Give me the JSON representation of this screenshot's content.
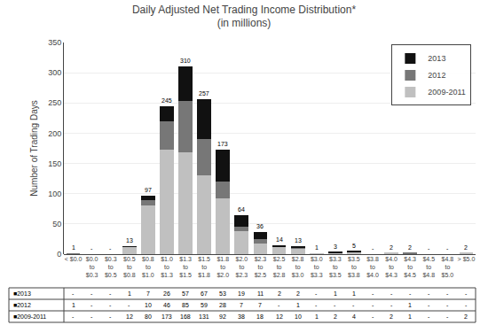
{
  "chart_data": {
    "type": "bar",
    "title": "Daily Adjusted Net Trading Income Distribution*\n(in millions)",
    "ylabel": "Number of Trading Days",
    "categories": [
      "< $0.0",
      "$0.0\nto\n$0.3",
      "$0.3\nto\n$0.5",
      "$0.5\nto\n$0.8",
      "$0.8\nto\n$1.0",
      "$1.0\nto\n$1.3",
      "$1.3\nto\n$1.5",
      "$1.5\nto\n$1.8",
      "$1.8\nto\n$2.0",
      "$2.0\nto\n$2.3",
      "$2.3\nto\n$2.5",
      "$2.5\nto\n$2.8",
      "$2.8\nto\n$3.0",
      "$3.0\nto\n$3.3",
      "$3.3\nto\n$3.5",
      "$3.5\nto\n$3.8",
      "$3.8\nto\n$4.0",
      "$4.0\nto\n$4.3",
      "$4.3\nto\n$4.5",
      "$4.5\nto\n$4.8",
      "$4.8\nto\n$5.0",
      "> $5.0"
    ],
    "series": [
      {
        "name": "2009-2011",
        "color": "#c0c0c0",
        "table_label": "■2009-2011",
        "values": [
          0,
          0,
          0,
          12,
          80,
          173,
          168,
          131,
          92,
          38,
          18,
          12,
          10,
          1,
          2,
          4,
          0,
          2,
          1,
          0,
          0,
          2
        ],
        "value_labels": [
          "-",
          "-",
          "-",
          "12",
          "80",
          "173",
          "168",
          "131",
          "92",
          "38",
          "18",
          "12",
          "10",
          "1",
          "2",
          "4",
          "-",
          "2",
          "1",
          "-",
          "-",
          "2"
        ]
      },
      {
        "name": "2012",
        "color": "#777777",
        "table_label": "■2012",
        "values": [
          1,
          0,
          0,
          0,
          10,
          46,
          85,
          59,
          28,
          7,
          7,
          0,
          1,
          0,
          0,
          0,
          0,
          0,
          1,
          0,
          0,
          0
        ],
        "value_labels": [
          "1",
          "-",
          "-",
          "-",
          "10",
          "46",
          "85",
          "59",
          "28",
          "7",
          "7",
          "-",
          "1",
          "-",
          "-",
          "-",
          "-",
          "-",
          "1",
          "-",
          "-",
          "-"
        ]
      },
      {
        "name": "2013",
        "color": "#111111",
        "table_label": "■2013",
        "values": [
          0,
          0,
          0,
          1,
          7,
          26,
          57,
          67,
          53,
          19,
          11,
          2,
          2,
          0,
          1,
          1,
          0,
          0,
          0,
          0,
          0,
          0
        ],
        "value_labels": [
          "-",
          "-",
          "-",
          "1",
          "7",
          "26",
          "57",
          "67",
          "53",
          "19",
          "11",
          "2",
          "2",
          "-",
          "1",
          "1",
          "-",
          "-",
          "-",
          "-",
          "-",
          "-"
        ]
      }
    ],
    "totals": [
      1,
      0,
      0,
      13,
      97,
      245,
      310,
      257,
      173,
      64,
      36,
      14,
      13,
      1,
      3,
      5,
      0,
      2,
      2,
      0,
      0,
      2
    ],
    "total_labels": [
      "1",
      "-",
      "-",
      "13",
      "97",
      "245",
      "310",
      "257",
      "173",
      "64",
      "36",
      "14",
      "13",
      "1",
      "3",
      "5",
      "-",
      "2",
      "2",
      "-",
      "-",
      "2"
    ],
    "stacked": true,
    "ylim": [
      0,
      350
    ],
    "yticks": [
      0,
      50,
      100,
      150,
      200,
      250,
      300,
      350
    ],
    "grid": true,
    "legend": "upper right"
  }
}
